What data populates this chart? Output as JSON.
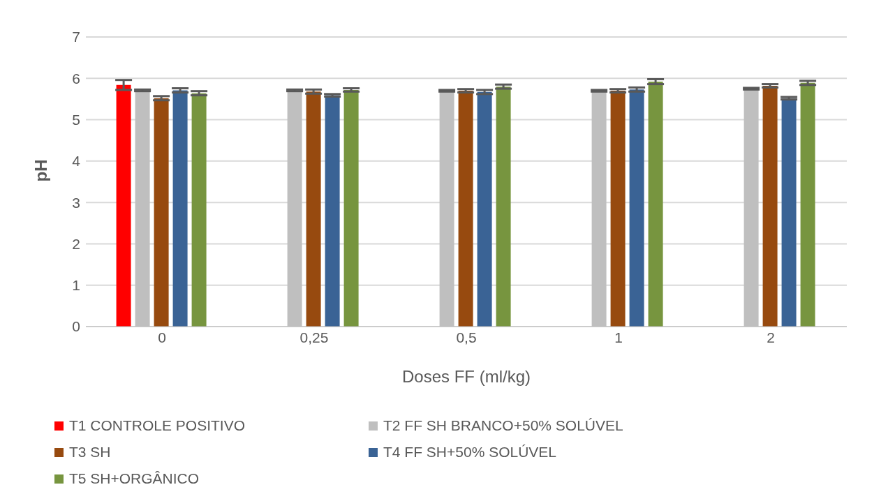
{
  "chart_data": {
    "type": "bar",
    "xlabel": "Doses FF (ml/kg)",
    "ylabel": "pH",
    "categories": [
      "0",
      "0,25",
      "0,5",
      "1",
      "2"
    ],
    "series": [
      {
        "name": "T1 CONTROLE POSITIVO",
        "color": "#ff0000",
        "values": [
          5.84,
          null,
          null,
          null,
          null
        ],
        "errors": [
          0.12,
          null,
          null,
          null,
          null
        ]
      },
      {
        "name": "T2 FF SH BRANCO+50% SOLÚVEL",
        "color": "#bfbfbf",
        "values": [
          5.71,
          5.71,
          5.7,
          5.7,
          5.75
        ],
        "errors": [
          0.02,
          0.02,
          0.02,
          0.02,
          0.02
        ]
      },
      {
        "name": "T3 SH",
        "color": "#974a0f",
        "values": [
          5.52,
          5.68,
          5.7,
          5.7,
          5.82
        ],
        "errors": [
          0.05,
          0.05,
          0.04,
          0.04,
          0.04
        ]
      },
      {
        "name": "T4 FF SH+50% SOLÚVEL",
        "color": "#3a6395",
        "values": [
          5.71,
          5.59,
          5.67,
          5.73,
          5.52
        ],
        "errors": [
          0.05,
          0.03,
          0.05,
          0.05,
          0.03
        ]
      },
      {
        "name": "T5 SH+ORGÂNICO",
        "color": "#77953f",
        "values": [
          5.64,
          5.72,
          5.8,
          5.92,
          5.89
        ],
        "errors": [
          0.05,
          0.04,
          0.05,
          0.06,
          0.05
        ]
      }
    ],
    "ylim": [
      0,
      7
    ],
    "yticks": [
      0,
      1,
      2,
      3,
      4,
      5,
      6,
      7
    ],
    "grid": "y",
    "legend": "bottom"
  }
}
